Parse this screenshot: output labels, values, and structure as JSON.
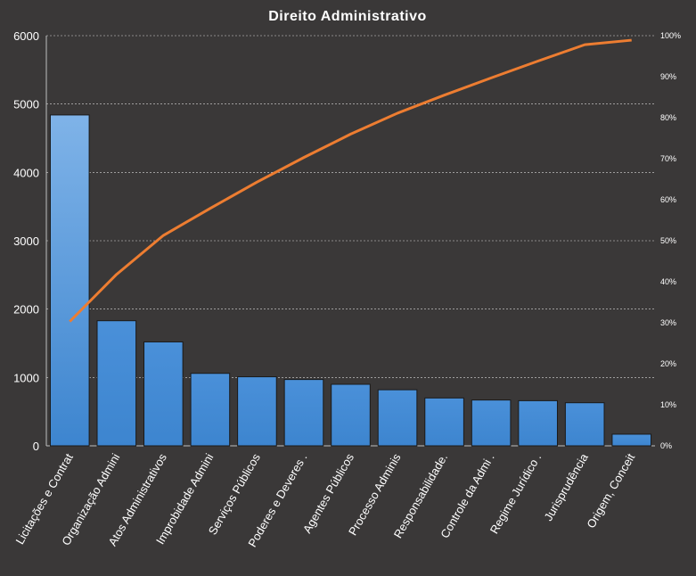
{
  "chart_data": {
    "type": "bar",
    "title": "Direito  Administrativo",
    "categories": [
      "Licitações e Contrat",
      "Organização Admini",
      "Atos Administrativos",
      "Improbidade Admini",
      "Serviços Públicos",
      "Poderes e Deveres .",
      "Agentes Públicos",
      "Processo Adminis",
      "Responsabilidade.",
      "Controle da Admi .",
      "Regime Jurídico .",
      "Jurisprudência",
      "Origem,  Conceit"
    ],
    "series": [
      {
        "kind": "bar",
        "values": [
          4840,
          1830,
          1520,
          1060,
          1010,
          970,
          900,
          820,
          700,
          670,
          660,
          630,
          170
        ],
        "color": "#4a90d9"
      },
      {
        "kind": "line",
        "axis": "right",
        "values": [
          0.303,
          0.418,
          0.513,
          0.579,
          0.643,
          0.703,
          0.76,
          0.811,
          0.855,
          0.897,
          0.938,
          0.978,
          0.989
        ],
        "color": "#ed7d31"
      }
    ],
    "ylim": [
      0,
      6000
    ],
    "yticks": [
      "0",
      "1000",
      "2000",
      "3000",
      "4000",
      "5000",
      "6000"
    ],
    "y2lim": [
      0,
      1
    ],
    "y2ticks": [
      "0%",
      "10%",
      "20%",
      "30%",
      "40%",
      "50%",
      "60%",
      "70%",
      "80%",
      "90%",
      "100%"
    ],
    "grid": true,
    "colors": {
      "background": "#3a3838",
      "gridline": "#d9d9d9",
      "bar_top": "#7fb3e8",
      "bar_bottom": "#3d85cf",
      "line": "#ed7d31"
    }
  }
}
